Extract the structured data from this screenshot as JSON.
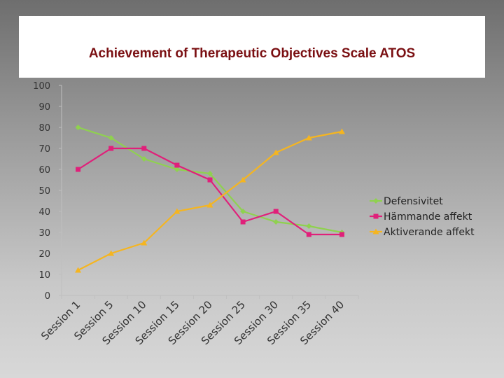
{
  "slide": {
    "title": "Achievement of Therapeutic Objectives Scale ATOS"
  },
  "chart_data": {
    "type": "line",
    "title": "Achievement of Therapeutic Objectives Scale ATOS",
    "xlabel": "",
    "ylabel": "",
    "ylim": [
      0,
      100
    ],
    "yticks": [
      "0",
      "10",
      "20",
      "30",
      "40",
      "50",
      "60",
      "70",
      "80",
      "90",
      "100"
    ],
    "categories": [
      "Session 1",
      "Session 5",
      "Session 10",
      "Session 15",
      "Session 20",
      "Session 25",
      "Session 30",
      "Session 35",
      "Session 40"
    ],
    "legend_position": "right",
    "grid": false,
    "series": [
      {
        "name": "Defensivitet",
        "color": "#8fd14f",
        "marker": "diamond",
        "values": [
          80,
          75,
          65,
          60,
          58,
          40,
          35,
          33,
          30
        ]
      },
      {
        "name": "Hämmande affekt",
        "color": "#e0207a",
        "marker": "square",
        "values": [
          60,
          70,
          70,
          62,
          55,
          35,
          40,
          29,
          29
        ]
      },
      {
        "name": "Aktiverande affekt",
        "color": "#f5b520",
        "marker": "triangle",
        "values": [
          12,
          20,
          25,
          40,
          43,
          55,
          68,
          75,
          78
        ]
      }
    ]
  }
}
